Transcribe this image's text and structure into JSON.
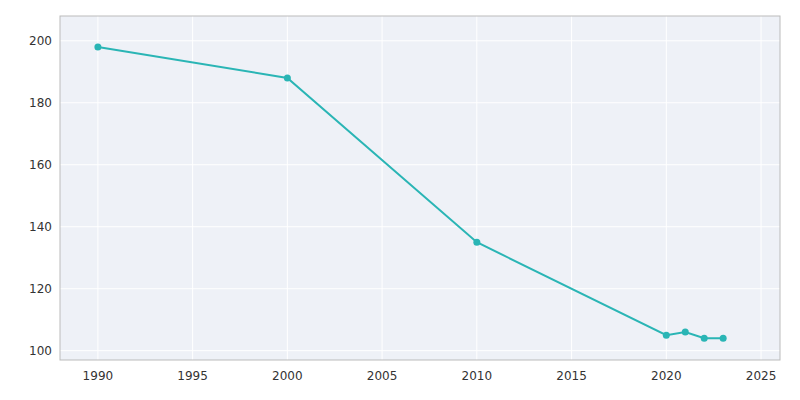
{
  "chart_data": {
    "type": "line",
    "x": [
      1990,
      2000,
      2010,
      2020,
      2021,
      2022,
      2023
    ],
    "values": [
      198,
      188,
      135,
      105,
      106,
      104,
      104
    ],
    "color": "#2ab5b5",
    "marker": "circle",
    "xlim": [
      1988,
      2026
    ],
    "ylim": [
      97,
      208
    ],
    "xticks": [
      1990,
      1995,
      2000,
      2005,
      2010,
      2015,
      2020,
      2025
    ],
    "yticks": [
      100,
      120,
      140,
      160,
      180,
      200
    ],
    "grid": true
  }
}
